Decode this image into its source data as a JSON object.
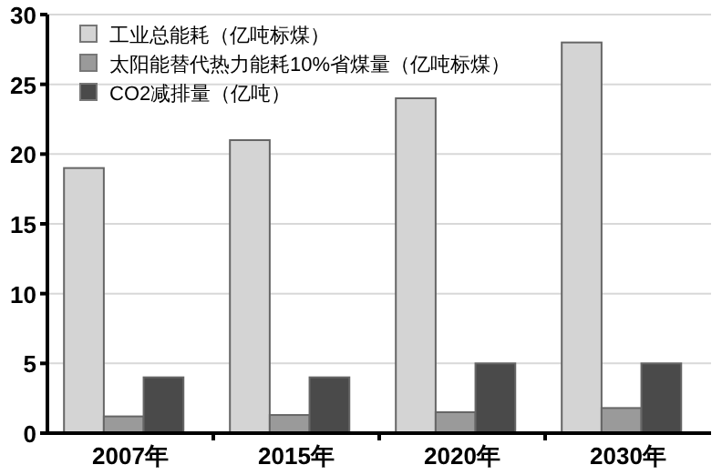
{
  "chart_data": {
    "type": "bar",
    "categories": [
      "2007年",
      "2015年",
      "2020年",
      "2030年"
    ],
    "series": [
      {
        "name": "工业总能耗（亿吨标煤）",
        "color": "#d4d4d4",
        "values": [
          19,
          21,
          24,
          28
        ]
      },
      {
        "name": "太阳能替代热力能耗10%省煤量（亿吨标煤）",
        "color": "#9a9a9a",
        "values": [
          1.2,
          1.3,
          1.5,
          1.8
        ]
      },
      {
        "name": "CO2减排量（亿吨）",
        "color": "#4a4a4a",
        "values": [
          4,
          4,
          5,
          5
        ]
      }
    ],
    "ylim": [
      0,
      30
    ],
    "yticks": [
      0,
      5,
      10,
      15,
      20,
      25,
      30
    ],
    "grid": "y",
    "legend": "top left"
  }
}
